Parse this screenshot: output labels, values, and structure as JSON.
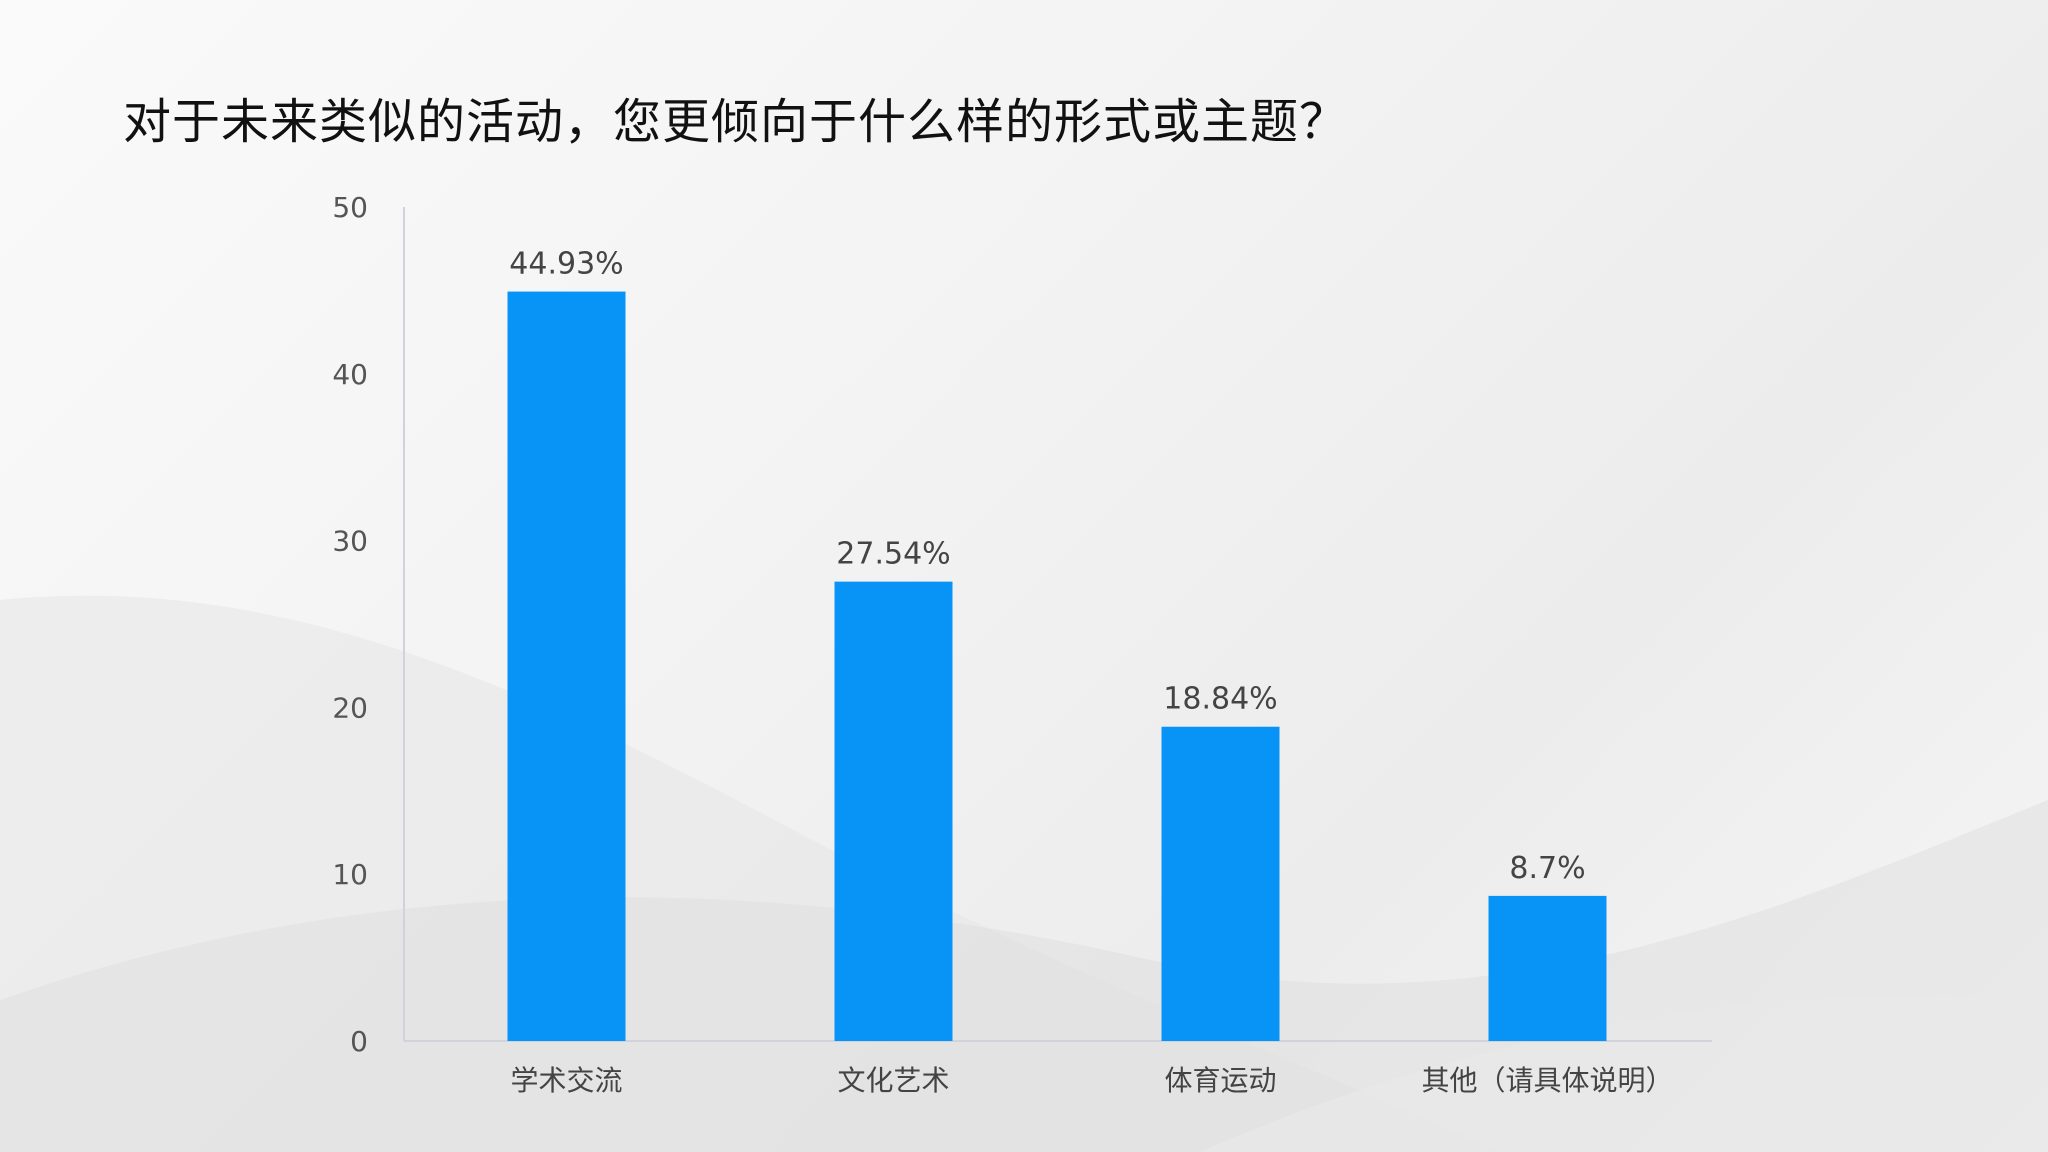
{
  "slide": {
    "title": "对于未来类似的活动，您更倾向于什么样的形式或主题？"
  },
  "chart_data": {
    "type": "bar",
    "title": "",
    "xlabel": "",
    "ylabel": "",
    "categories": [
      "学术交流",
      "文化艺术",
      "体育运动",
      "其他（请具体说明）"
    ],
    "values": [
      44.93,
      27.54,
      18.84,
      8.7
    ],
    "data_labels": [
      "44.93%",
      "27.54%",
      "18.84%",
      "8.7%"
    ],
    "ylim": [
      0,
      50
    ],
    "yticks": [
      0,
      10,
      20,
      30,
      40,
      50
    ],
    "grid": false,
    "legend": "none",
    "bar_color": "#0894F7"
  }
}
